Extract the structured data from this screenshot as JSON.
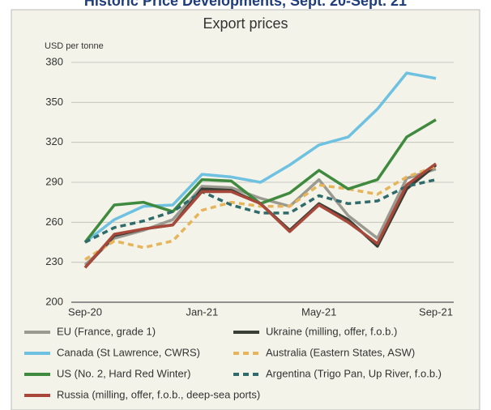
{
  "page_title": "Historic Price Developments, Sept. 20-Sept. 21",
  "chart_data": {
    "type": "line",
    "title": "Export prices",
    "y_label": "USD per tonne",
    "categories": [
      "Sep-20",
      null,
      null,
      null,
      "Jan-21",
      null,
      null,
      null,
      "May-21",
      null,
      null,
      null,
      "Sep-21"
    ],
    "ylim": [
      200,
      380
    ],
    "yticks": [
      200,
      230,
      260,
      290,
      320,
      350,
      380
    ],
    "grid": true,
    "series": [
      {
        "name": "EU (France, grade 1)",
        "color": "#9a9a90",
        "dashed": false,
        "values": [
          228,
          248,
          254,
          262,
          287,
          286,
          278,
          272,
          292,
          265,
          248,
          293,
          300
        ]
      },
      {
        "name": "Ukraine (milling, offer, f.o.b.)",
        "color": "#3a3f36",
        "dashed": false,
        "values": [
          226,
          250,
          255,
          258,
          285,
          284,
          274,
          254,
          274,
          262,
          242,
          285,
          303
        ]
      },
      {
        "name": "Canada (St Lawrence, CWRS)",
        "color": "#6ec1e0",
        "dashed": false,
        "values": [
          245,
          262,
          272,
          273,
          296,
          294,
          290,
          303,
          318,
          324,
          345,
          372,
          368
        ]
      },
      {
        "name": "Australia (Eastern States, ASW)",
        "color": "#e6b45a",
        "dashed": true,
        "values": [
          232,
          246,
          241,
          246,
          269,
          275,
          272,
          272,
          288,
          285,
          281,
          294,
          302
        ]
      },
      {
        "name": "US (No. 2, Hard Red Winter)",
        "color": "#3f8a3e",
        "dashed": false,
        "values": [
          245,
          273,
          275,
          268,
          292,
          291,
          274,
          282,
          299,
          285,
          292,
          324,
          337
        ]
      },
      {
        "name": "Argentina (Trigo Pan, Up River, f.o.b.)",
        "color": "#2f6b6b",
        "dashed": true,
        "values": [
          245,
          256,
          261,
          268,
          283,
          273,
          267,
          267,
          280,
          274,
          276,
          287,
          292
        ]
      },
      {
        "name": "Russia (milling, offer, f.o.b., deep-sea ports)",
        "color": "#a8483a",
        "dashed": false,
        "values": [
          226,
          251,
          255,
          258,
          283,
          283,
          274,
          253,
          273,
          260,
          244,
          288,
          304
        ]
      }
    ]
  }
}
